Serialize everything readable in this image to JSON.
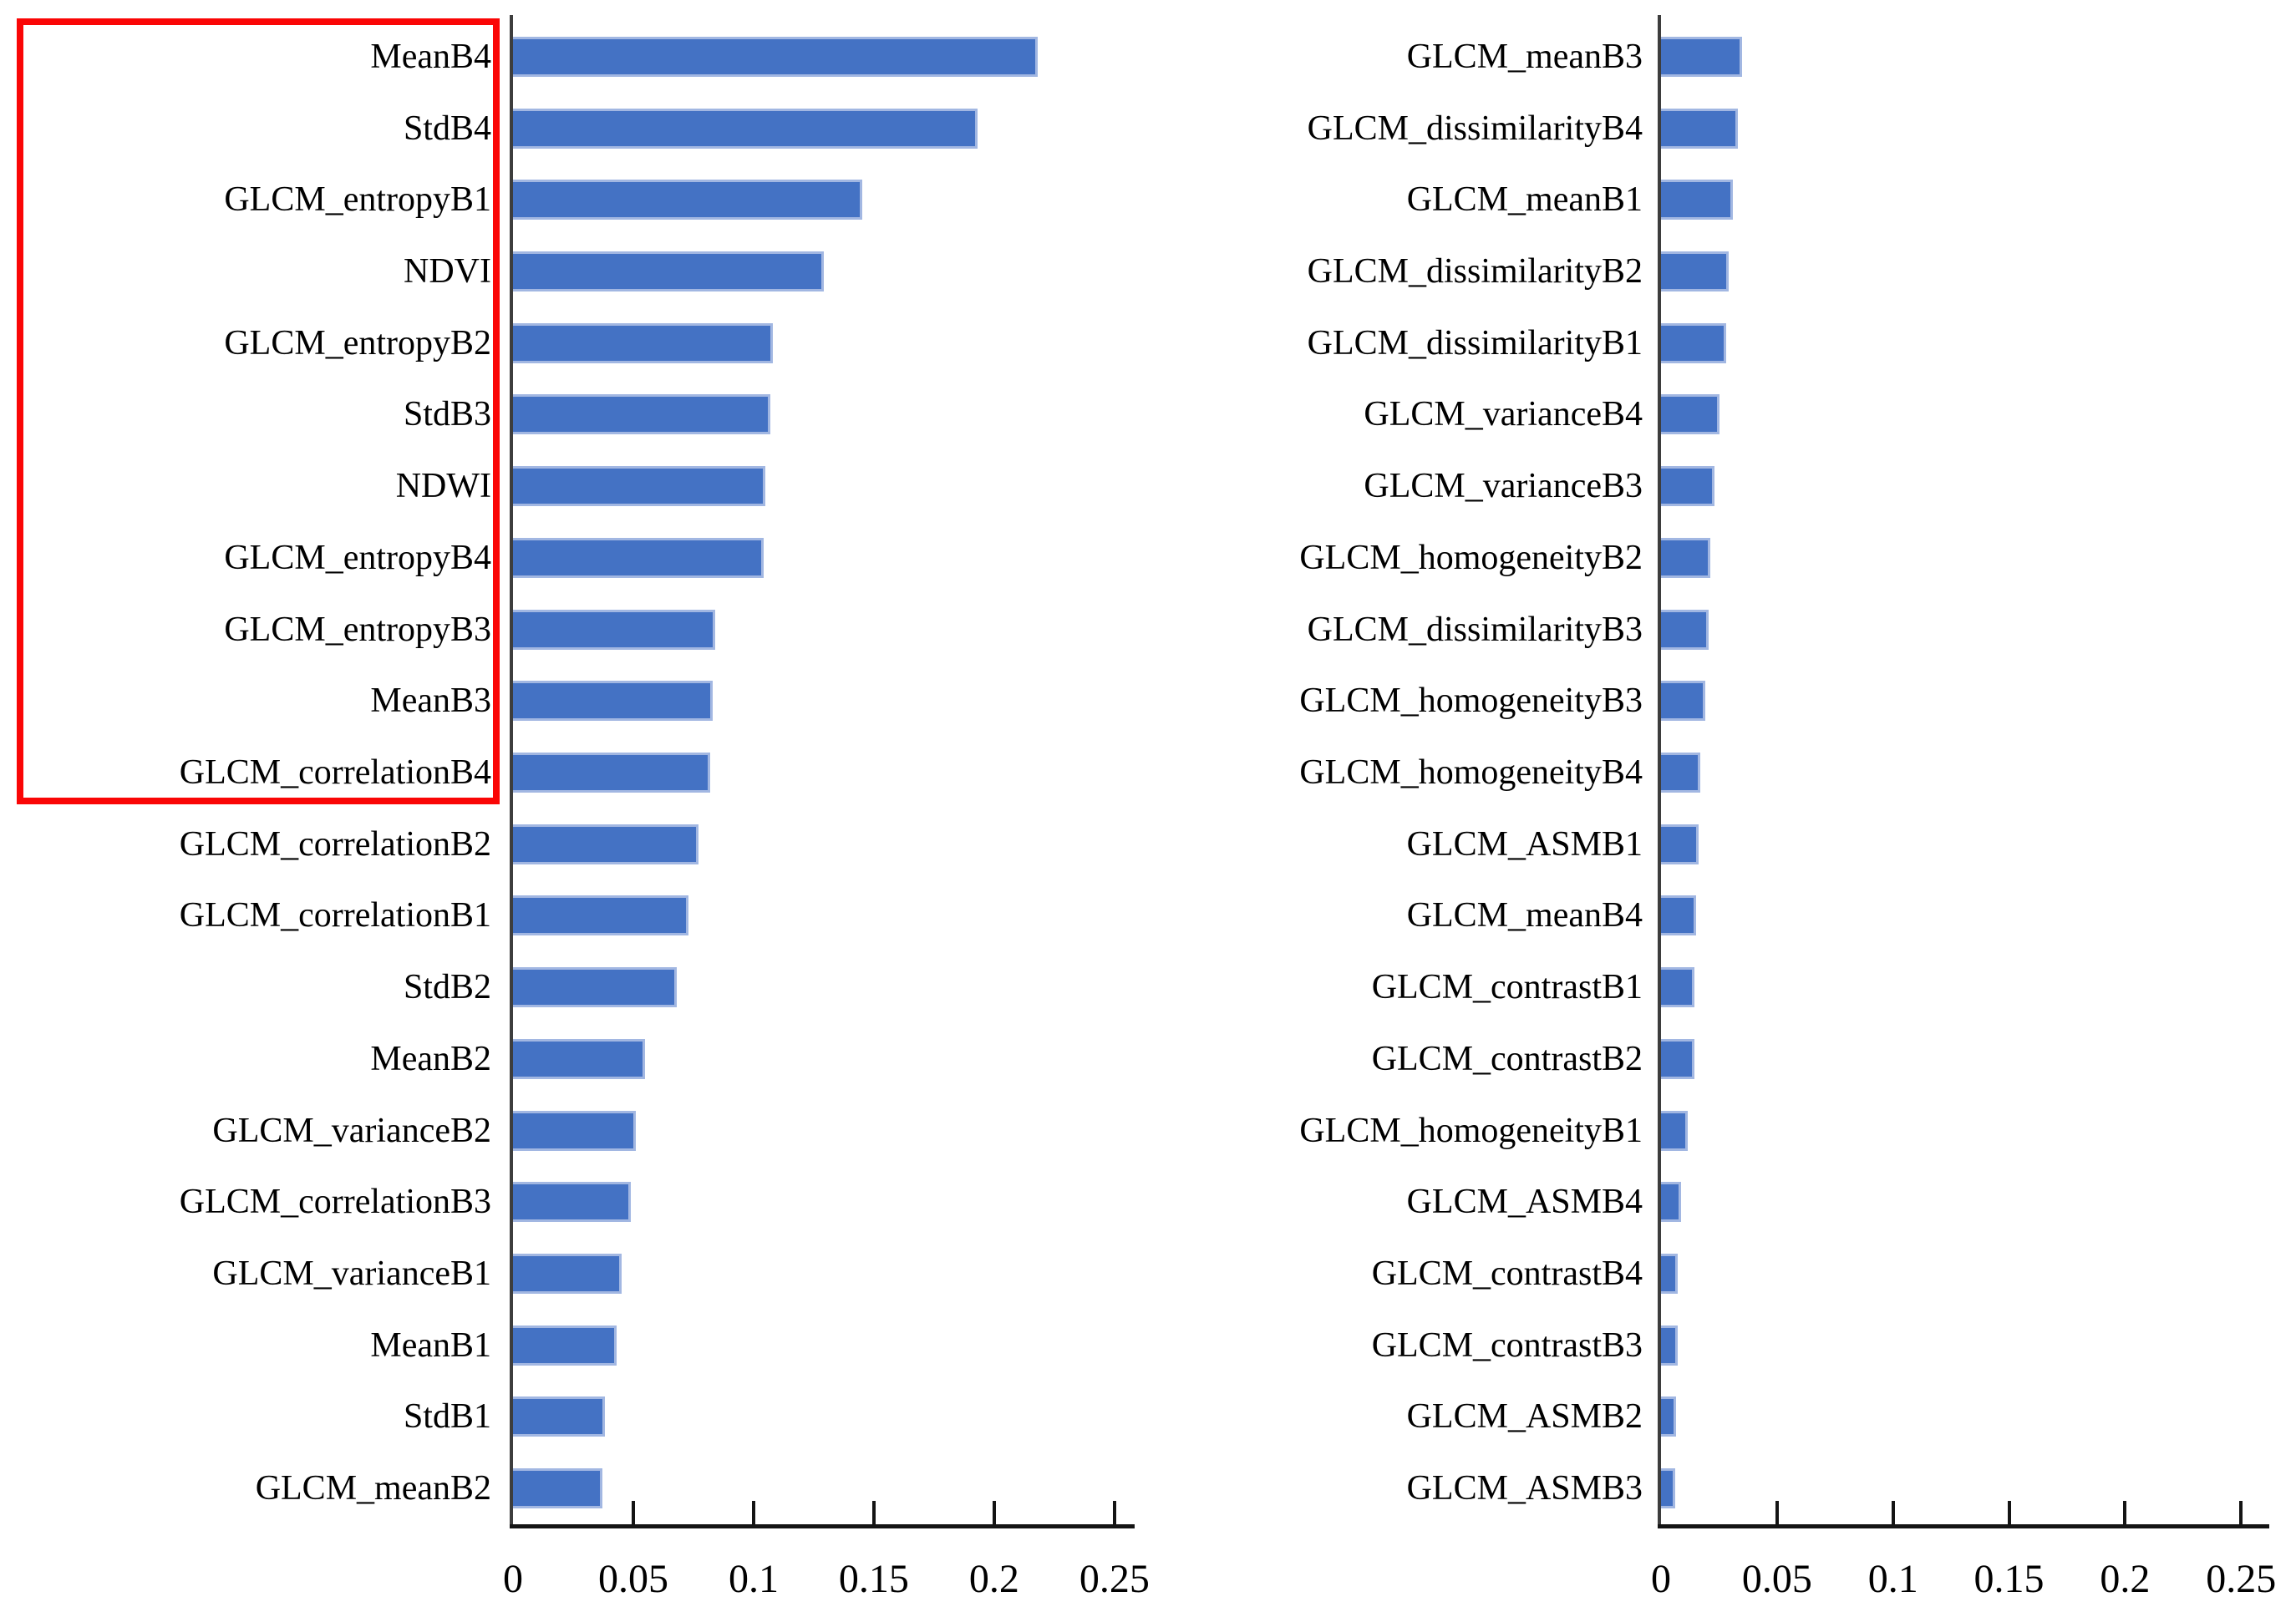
{
  "figure": {
    "background_color": "#ffffff",
    "bar_color": "#4472C4",
    "bar_edge_color": "#a2b7e2",
    "axis_color": "#141414",
    "highlight_box_color": "#fa0606"
  },
  "chart_data": [
    {
      "panel": "left",
      "type": "bar",
      "orientation": "horizontal",
      "title": "",
      "xlabel": "",
      "ylabel": "",
      "xlim": [
        0,
        0.25
      ],
      "axis_end": 0.257,
      "grid": false,
      "x_ticks": [
        0.05,
        0.1,
        0.15,
        0.2,
        0.25
      ],
      "x_tick_labels": [
        "0",
        "0.05",
        "0.1",
        "0.15",
        "0.2",
        "0.25"
      ],
      "x_tick_label_values": [
        0,
        0.05,
        0.1,
        0.15,
        0.2,
        0.25
      ],
      "categories": [
        "MeanB4",
        "StdB4",
        "GLCM_entropyB1",
        "NDVI",
        "GLCM_entropyB2",
        "StdB3",
        "NDWI",
        "GLCM_entropyB4",
        "GLCM_entropyB3",
        "MeanB3",
        "GLCM_correlationB4",
        "GLCM_correlationB2",
        "GLCM_correlationB1",
        "StdB2",
        "MeanB2",
        "GLCM_varianceB2",
        "GLCM_correlationB3",
        "GLCM_varianceB1",
        "MeanB1",
        "StdB1",
        "GLCM_meanB2"
      ],
      "values": [
        0.217,
        0.192,
        0.144,
        0.128,
        0.107,
        0.106,
        0.104,
        0.103,
        0.083,
        0.082,
        0.081,
        0.076,
        0.072,
        0.067,
        0.054,
        0.05,
        0.048,
        0.044,
        0.042,
        0.037,
        0.036
      ],
      "highlight_box": {
        "enclosed_categories": [
          "MeanB4",
          "StdB4",
          "GLCM_entropyB1",
          "NDVI",
          "GLCM_entropyB2",
          "StdB3",
          "NDWI",
          "GLCM_entropyB4",
          "GLCM_entropyB3",
          "MeanB3",
          "GLCM_correlationB4"
        ],
        "first_row": "MeanB4",
        "last_row": "GLCM_correlationB4",
        "color": "#fa0606"
      }
    },
    {
      "panel": "right",
      "type": "bar",
      "orientation": "horizontal",
      "title": "",
      "xlabel": "",
      "ylabel": "",
      "xlim": [
        0,
        0.25
      ],
      "axis_end": 0.26,
      "grid": false,
      "x_ticks": [
        0.05,
        0.1,
        0.15,
        0.2,
        0.25
      ],
      "x_tick_labels": [
        "0",
        "0.05",
        "0.1",
        "0.15",
        "0.2",
        "0.25"
      ],
      "x_tick_label_values": [
        0,
        0.05,
        0.1,
        0.15,
        0.2,
        0.25
      ],
      "categories": [
        "GLCM_meanB3",
        "GLCM_dissimilarityB4",
        "GLCM_meanB1",
        "GLCM_dissimilarityB2",
        "GLCM_dissimilarityB1",
        "GLCM_varianceB4",
        "GLCM_varianceB3",
        "GLCM_homogeneityB2",
        "GLCM_dissimilarityB3",
        "GLCM_homogeneityB3",
        "GLCM_homogeneityB4",
        "GLCM_ASMB1",
        "GLCM_meanB4",
        "GLCM_contrastB1",
        "GLCM_contrastB2",
        "GLCM_homogeneityB1",
        "GLCM_ASMB4",
        "GLCM_contrastB4",
        "GLCM_contrastB3",
        "GLCM_ASMB2",
        "GLCM_ASMB3"
      ],
      "values": [
        0.034,
        0.032,
        0.03,
        0.028,
        0.027,
        0.024,
        0.022,
        0.02,
        0.0195,
        0.018,
        0.016,
        0.015,
        0.014,
        0.0135,
        0.0135,
        0.0105,
        0.0075,
        0.006,
        0.006,
        0.0055,
        0.005
      ]
    }
  ]
}
